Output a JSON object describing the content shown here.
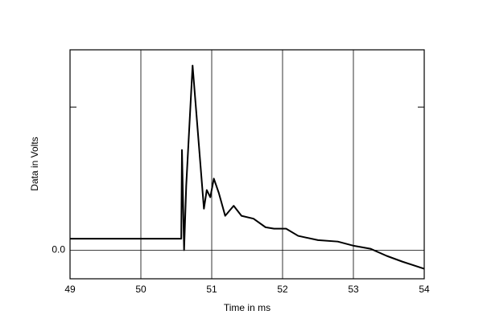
{
  "chart_data": {
    "type": "line",
    "xlabel": "Time in ms",
    "ylabel": "Data in Volts",
    "x": [
      49,
      50.57,
      50.58,
      50.61,
      50.64,
      50.73,
      50.89,
      50.93,
      50.98,
      51.03,
      51.1,
      51.19,
      51.31,
      51.42,
      51.59,
      51.76,
      51.88,
      52.05,
      52.22,
      52.5,
      52.78,
      53.01,
      53.24,
      53.47,
      53.69,
      54
    ],
    "series": [
      {
        "color": "#000000",
        "values": [
          0.08,
          0.08,
          0.7,
          0,
          0.45,
          1.29,
          0.29,
          0.42,
          0.37,
          0.5,
          0.4,
          0.24,
          0.31,
          0.24,
          0.22,
          0.16,
          0.15,
          0.15,
          0.1,
          0.07,
          0.06,
          0.03,
          0.01,
          -0.04,
          -0.08,
          -0.13
        ]
      }
    ],
    "xlim": [
      49,
      54
    ],
    "xticks": [
      49,
      50,
      51,
      52,
      53,
      54
    ],
    "ylim": [
      -0.2,
      1.4
    ],
    "yticks": [
      {
        "value": 0,
        "label": "0.0"
      },
      {
        "value": 1,
        "label": null
      }
    ],
    "grid": true
  }
}
